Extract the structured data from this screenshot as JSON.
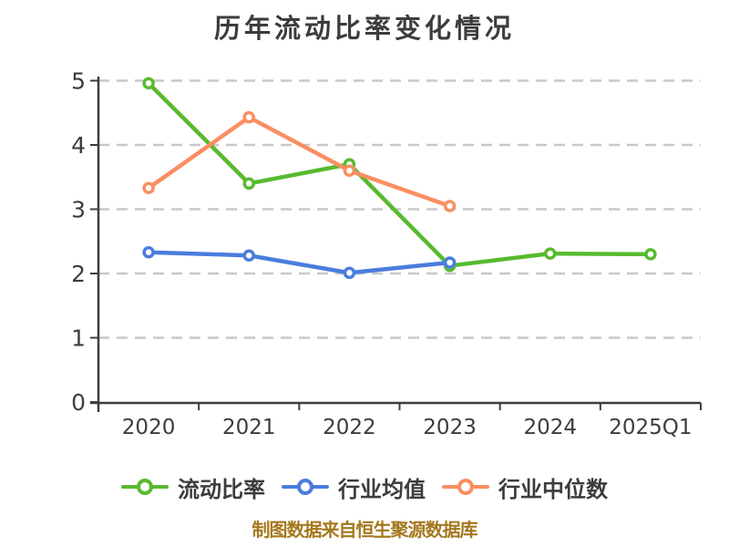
{
  "caption": "制图数据来自恒生聚源数据库",
  "colors": {
    "title": "#3c3c3c",
    "axis": "#3d3d3d",
    "grid": "#c8c8c8",
    "caption": "#a5781e",
    "marker_fill": "#ffffff"
  },
  "chart_data": {
    "type": "line",
    "title": "历年流动比率变化情况",
    "categories": [
      "2020",
      "2021",
      "2022",
      "2023",
      "2024",
      "2025Q1"
    ],
    "series": [
      {
        "name": "流动比率",
        "color": "#58ba2f",
        "values": [
          4.96,
          3.4,
          3.7,
          2.12,
          2.31,
          2.3
        ]
      },
      {
        "name": "行业均值",
        "color": "#4a7ddd",
        "values": [
          2.33,
          2.28,
          2.01,
          2.17,
          null,
          null
        ]
      },
      {
        "name": "行业中位数",
        "color": "#fa8e62",
        "values": [
          3.33,
          4.43,
          3.6,
          3.05,
          null,
          null
        ]
      }
    ],
    "ylim": [
      0,
      5
    ],
    "yticks": [
      0,
      1,
      2,
      3,
      4,
      5
    ],
    "xlabel": "",
    "ylabel": "",
    "grid": "horizontal-dashed",
    "legend_position": "bottom"
  }
}
